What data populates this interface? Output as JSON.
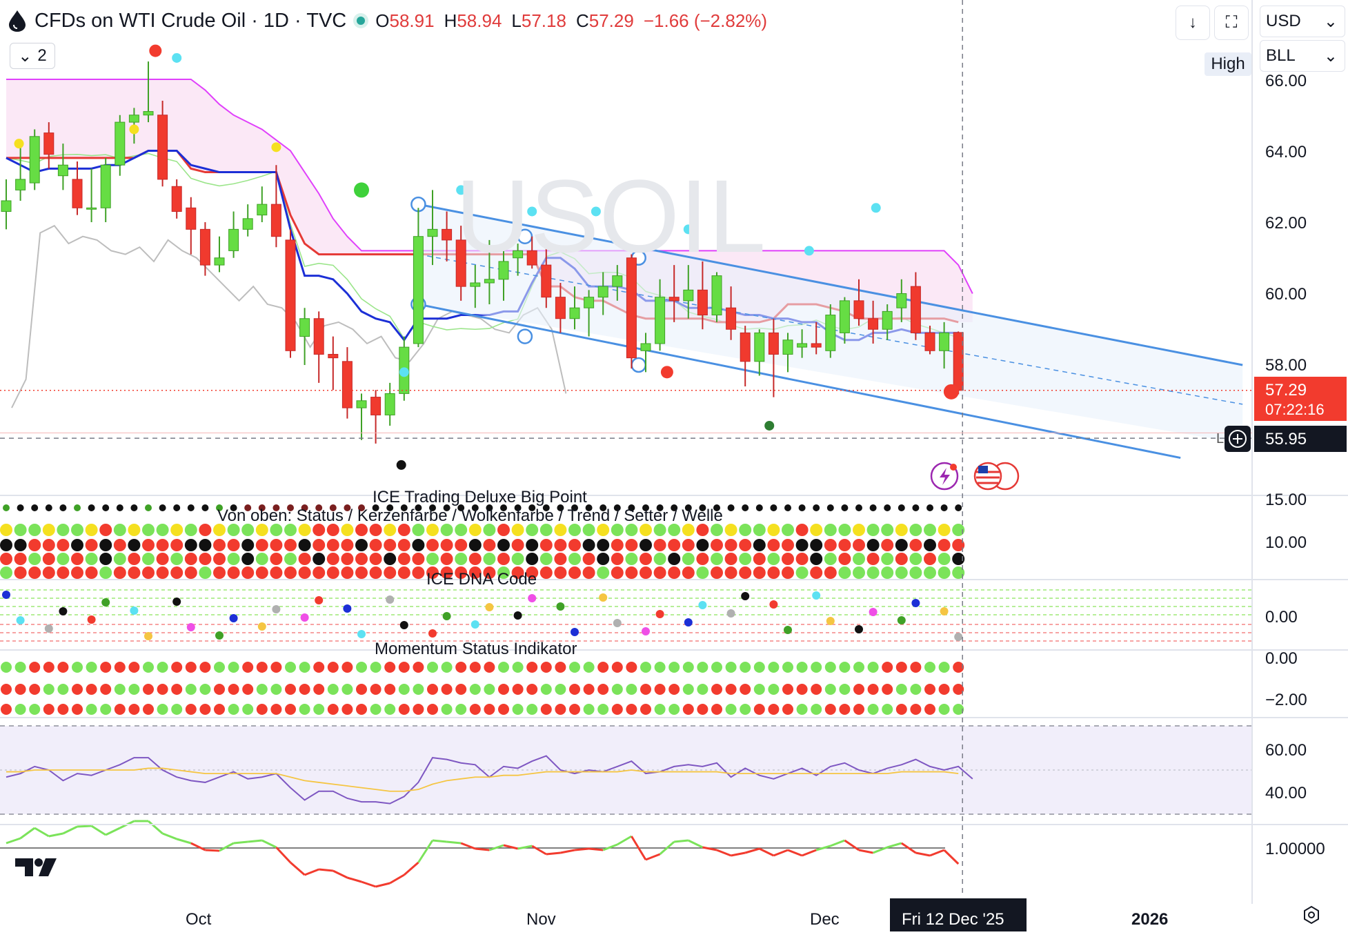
{
  "header": {
    "symbol_title": "CFDs on WTI Crude Oil · 1D · TVC",
    "ohlc": {
      "o_label": "O",
      "o": "58.91",
      "h_label": "H",
      "h": "58.94",
      "l_label": "L",
      "l": "57.18",
      "c_label": "C",
      "c": "57.29",
      "change": "−1.66 (−2.82%)"
    },
    "collapse_count": "2"
  },
  "toolbar": {
    "currency": "USD",
    "unit": "BLL",
    "high_label": "High",
    "icons": [
      "download-icon",
      "screen-icon",
      "chevron-down-icon",
      "settings-icon"
    ]
  },
  "watermark": "USOIL",
  "price_labels": {
    "last_price": "57.29",
    "countdown": "07:22:16",
    "crosshair_price": "55.95",
    "crosshair_marker": "L"
  },
  "indicator_titles": {
    "big_point": "ICE Trading Deluxe Big Point",
    "big_point_sub": "Von oben: Status / Kerzenfarbe / Wolkenfarbe / Trend / Setter / Welle",
    "dna": "ICE DNA Code",
    "momentum": "Momentum Status Indikator"
  },
  "time_axis": {
    "labels": [
      "Oct",
      "Nov",
      "Dec",
      "2026"
    ],
    "crosshair_date": "Fri 12 Dec '25"
  },
  "colors": {
    "up": "#66dd44",
    "down": "#f03a2e",
    "channel": "#4a90e2",
    "kijun": "#e53935",
    "tenkan": "#1c2fd6",
    "cloud": "#f7d6ef",
    "cloud_edge": "#e040fb",
    "rsi": "#7e57c2",
    "rsi_ma": "#f5c542"
  },
  "chart_data": [
    {
      "type": "candlestick",
      "title": "CFDs on WTI Crude Oil · 1D · TVC",
      "y_axis_labels": [
        "66.00",
        "64.00",
        "62.00",
        "60.00",
        "58.00"
      ],
      "ylim": [
        54.2,
        66.4
      ],
      "x_labels": [
        "Oct",
        "Nov",
        "Dec",
        "2026"
      ],
      "candles": [
        {
          "o": 62.3,
          "h": 63.2,
          "l": 61.8,
          "c": 62.6
        },
        {
          "o": 62.9,
          "h": 64.2,
          "l": 62.6,
          "c": 63.2
        },
        {
          "o": 63.1,
          "h": 64.6,
          "l": 62.9,
          "c": 64.4
        },
        {
          "o": 64.5,
          "h": 64.8,
          "l": 63.5,
          "c": 63.9
        },
        {
          "o": 63.3,
          "h": 64.2,
          "l": 62.9,
          "c": 63.6
        },
        {
          "o": 63.2,
          "h": 63.7,
          "l": 62.2,
          "c": 62.4
        },
        {
          "o": 62.4,
          "h": 63.5,
          "l": 62.0,
          "c": 62.4
        },
        {
          "o": 62.4,
          "h": 63.8,
          "l": 62.0,
          "c": 63.6
        },
        {
          "o": 63.6,
          "h": 65.0,
          "l": 63.3,
          "c": 64.8
        },
        {
          "o": 64.8,
          "h": 65.2,
          "l": 64.2,
          "c": 65.0
        },
        {
          "o": 65.0,
          "h": 66.5,
          "l": 64.8,
          "c": 65.1
        },
        {
          "o": 65.0,
          "h": 65.4,
          "l": 63.0,
          "c": 63.2
        },
        {
          "o": 63.0,
          "h": 63.2,
          "l": 62.1,
          "c": 62.3
        },
        {
          "o": 62.4,
          "h": 62.7,
          "l": 61.1,
          "c": 61.8
        },
        {
          "o": 61.8,
          "h": 62.0,
          "l": 60.5,
          "c": 60.8
        },
        {
          "o": 60.8,
          "h": 61.6,
          "l": 60.6,
          "c": 61.0
        },
        {
          "o": 61.2,
          "h": 62.3,
          "l": 61.0,
          "c": 61.8
        },
        {
          "o": 61.8,
          "h": 62.5,
          "l": 61.6,
          "c": 62.1
        },
        {
          "o": 62.2,
          "h": 63.0,
          "l": 62.0,
          "c": 62.5
        },
        {
          "o": 62.5,
          "h": 63.6,
          "l": 61.3,
          "c": 61.6
        },
        {
          "o": 61.5,
          "h": 61.8,
          "l": 58.2,
          "c": 58.4
        },
        {
          "o": 58.8,
          "h": 59.6,
          "l": 58.0,
          "c": 59.3
        },
        {
          "o": 59.3,
          "h": 59.5,
          "l": 57.5,
          "c": 58.3
        },
        {
          "o": 58.3,
          "h": 58.8,
          "l": 57.3,
          "c": 58.2
        },
        {
          "o": 58.1,
          "h": 58.5,
          "l": 56.5,
          "c": 56.8
        },
        {
          "o": 56.8,
          "h": 57.2,
          "l": 55.9,
          "c": 57.0
        },
        {
          "o": 57.1,
          "h": 57.3,
          "l": 55.8,
          "c": 56.6
        },
        {
          "o": 56.6,
          "h": 57.5,
          "l": 56.3,
          "c": 57.2
        },
        {
          "o": 57.2,
          "h": 58.8,
          "l": 57.0,
          "c": 58.5
        },
        {
          "o": 58.6,
          "h": 62.4,
          "l": 58.5,
          "c": 61.6
        },
        {
          "o": 61.6,
          "h": 62.9,
          "l": 60.8,
          "c": 61.8
        },
        {
          "o": 61.8,
          "h": 62.3,
          "l": 60.9,
          "c": 61.5
        },
        {
          "o": 61.5,
          "h": 61.9,
          "l": 59.8,
          "c": 60.2
        },
        {
          "o": 60.2,
          "h": 60.8,
          "l": 59.6,
          "c": 60.3
        },
        {
          "o": 60.3,
          "h": 61.5,
          "l": 59.7,
          "c": 60.4
        },
        {
          "o": 60.4,
          "h": 61.3,
          "l": 59.8,
          "c": 60.9
        },
        {
          "o": 61.0,
          "h": 61.4,
          "l": 60.5,
          "c": 61.2
        },
        {
          "o": 61.2,
          "h": 61.6,
          "l": 60.7,
          "c": 60.8
        },
        {
          "o": 60.8,
          "h": 61.3,
          "l": 59.6,
          "c": 59.9
        },
        {
          "o": 59.9,
          "h": 60.3,
          "l": 58.9,
          "c": 59.3
        },
        {
          "o": 59.3,
          "h": 60.2,
          "l": 59.0,
          "c": 59.6
        },
        {
          "o": 59.6,
          "h": 60.1,
          "l": 58.8,
          "c": 59.9
        },
        {
          "o": 59.9,
          "h": 60.6,
          "l": 59.4,
          "c": 60.2
        },
        {
          "o": 60.2,
          "h": 60.8,
          "l": 59.8,
          "c": 60.5
        },
        {
          "o": 61.0,
          "h": 61.1,
          "l": 57.9,
          "c": 58.2
        },
        {
          "o": 58.4,
          "h": 58.9,
          "l": 57.8,
          "c": 58.6
        },
        {
          "o": 58.6,
          "h": 60.4,
          "l": 58.4,
          "c": 59.9
        },
        {
          "o": 59.9,
          "h": 60.8,
          "l": 59.2,
          "c": 59.8
        },
        {
          "o": 59.8,
          "h": 60.8,
          "l": 59.3,
          "c": 60.1
        },
        {
          "o": 60.1,
          "h": 60.9,
          "l": 59.0,
          "c": 59.4
        },
        {
          "o": 59.4,
          "h": 60.6,
          "l": 59.2,
          "c": 60.5
        },
        {
          "o": 59.6,
          "h": 60.2,
          "l": 58.7,
          "c": 59.0
        },
        {
          "o": 58.9,
          "h": 59.1,
          "l": 57.4,
          "c": 58.1
        },
        {
          "o": 58.1,
          "h": 59.0,
          "l": 57.7,
          "c": 58.9
        },
        {
          "o": 58.9,
          "h": 59.3,
          "l": 57.1,
          "c": 58.3
        },
        {
          "o": 58.3,
          "h": 58.9,
          "l": 57.8,
          "c": 58.7
        },
        {
          "o": 58.5,
          "h": 59.0,
          "l": 58.2,
          "c": 58.6
        },
        {
          "o": 58.6,
          "h": 59.2,
          "l": 58.3,
          "c": 58.5
        },
        {
          "o": 58.4,
          "h": 59.7,
          "l": 58.2,
          "c": 59.4
        },
        {
          "o": 58.9,
          "h": 59.9,
          "l": 58.6,
          "c": 59.8
        },
        {
          "o": 59.8,
          "h": 60.4,
          "l": 59.1,
          "c": 59.3
        },
        {
          "o": 59.3,
          "h": 59.8,
          "l": 58.6,
          "c": 59.0
        },
        {
          "o": 59.0,
          "h": 59.7,
          "l": 58.7,
          "c": 59.5
        },
        {
          "o": 59.6,
          "h": 60.4,
          "l": 59.2,
          "c": 60.0
        },
        {
          "o": 60.2,
          "h": 60.6,
          "l": 58.7,
          "c": 58.9
        },
        {
          "o": 58.9,
          "h": 59.1,
          "l": 58.3,
          "c": 58.4
        },
        {
          "o": 58.4,
          "h": 59.2,
          "l": 57.9,
          "c": 58.9
        },
        {
          "o": 58.91,
          "h": 58.94,
          "l": 57.18,
          "c": 57.29
        }
      ],
      "overlays": {
        "tenkan": [
          63.8,
          63.6,
          63.4,
          63.5,
          63.5,
          63.5,
          63.5,
          63.6,
          63.6,
          63.8,
          64.0,
          64.0,
          64.0,
          63.6,
          63.5,
          63.4,
          63.4,
          63.4,
          63.4,
          63.4,
          61.8,
          60.5,
          60.5,
          60.4,
          60.0,
          59.5,
          59.3,
          59.2,
          58.7,
          59.3,
          59.3,
          59.3,
          59.4,
          59.4,
          59.4,
          59.5,
          59.5,
          60.3,
          61.0,
          61.0,
          60.7,
          60.2,
          60.2,
          60.2,
          60.1,
          59.8,
          59.8,
          59.8,
          59.6,
          59.6,
          59.6,
          59.5,
          59.4,
          59.4,
          59.3,
          59.3,
          59.2,
          59.2,
          58.9,
          58.7,
          58.7,
          58.9,
          58.9,
          59.0,
          58.9,
          58.9,
          58.9,
          58.9
        ],
        "kijun": [
          63.8,
          63.8,
          63.8,
          63.8,
          63.8,
          63.8,
          63.8,
          63.8,
          63.8,
          63.8,
          64.0,
          64.0,
          64.0,
          63.5,
          63.4,
          63.4,
          63.4,
          63.4,
          63.4,
          63.4,
          62.2,
          61.4,
          61.1,
          61.1,
          61.1,
          61.1,
          61.1,
          61.1,
          61.1,
          61.1,
          61.1,
          61.1,
          61.1,
          61.1,
          61.1,
          61.1,
          61.1,
          61.1,
          60.2,
          60.2,
          59.9,
          59.8,
          59.8,
          59.6,
          59.4,
          59.3,
          59.3,
          59.3,
          59.3,
          59.3,
          59.2,
          59.2,
          59.2,
          59.2,
          59.3,
          59.7,
          59.7,
          59.7,
          59.6,
          59.5,
          59.3,
          59.3,
          59.3,
          59.3,
          59.3,
          59.3,
          59.3,
          59.2
        ]
      },
      "channel": {
        "upper": [
          62.5,
          58.0
        ],
        "lower": [
          59.7,
          55.8
        ]
      },
      "last_price": 57.29
    },
    {
      "type": "dot-matrix",
      "title": "ICE Trading Deluxe Big Point",
      "y_axis_labels": [
        "15.00",
        "10.00"
      ]
    },
    {
      "type": "dot-scatter",
      "title": "ICE DNA Code",
      "y_axis_labels": [
        "0.00"
      ]
    },
    {
      "type": "dot-matrix",
      "title": "Momentum Status Indikator",
      "y_axis_labels": [
        "0.00",
        "−2.00"
      ]
    },
    {
      "type": "line",
      "title": "",
      "y_axis_labels": [
        "60.00",
        "40.00"
      ],
      "ylim": [
        25,
        75
      ],
      "series": [
        {
          "values": [
            46,
            48,
            52,
            50,
            44,
            48,
            47,
            50,
            53,
            57,
            57,
            50,
            46,
            44,
            43,
            46,
            49,
            45,
            46,
            48,
            40,
            33,
            38,
            38,
            34,
            32,
            32,
            31,
            35,
            43,
            57,
            56,
            54,
            53,
            46,
            52,
            51,
            55,
            58,
            50,
            48,
            50,
            49,
            52,
            55,
            48,
            49,
            52,
            53,
            52,
            54,
            46,
            51,
            47,
            45,
            48,
            51,
            47,
            52,
            54,
            50,
            48,
            51,
            53,
            56,
            52,
            50,
            52,
            45
          ]
        },
        {
          "values": [
            49,
            49,
            50,
            50,
            50,
            50,
            50,
            50,
            50,
            50,
            51,
            51,
            50,
            49,
            48,
            48,
            48,
            48,
            48,
            48,
            46,
            44,
            43,
            42,
            41,
            40,
            39,
            38,
            38,
            39,
            42,
            44,
            45,
            46,
            46,
            47,
            47,
            48,
            49,
            49,
            49,
            49,
            49,
            49,
            50,
            49,
            49,
            49,
            49,
            49,
            49,
            48,
            48,
            48,
            48,
            48,
            48,
            48,
            48,
            48,
            48,
            48,
            48,
            49,
            49,
            49,
            49,
            48
          ]
        }
      ]
    },
    {
      "type": "line",
      "title": "",
      "y_axis_labels": [
        "1.00000"
      ]
    }
  ]
}
